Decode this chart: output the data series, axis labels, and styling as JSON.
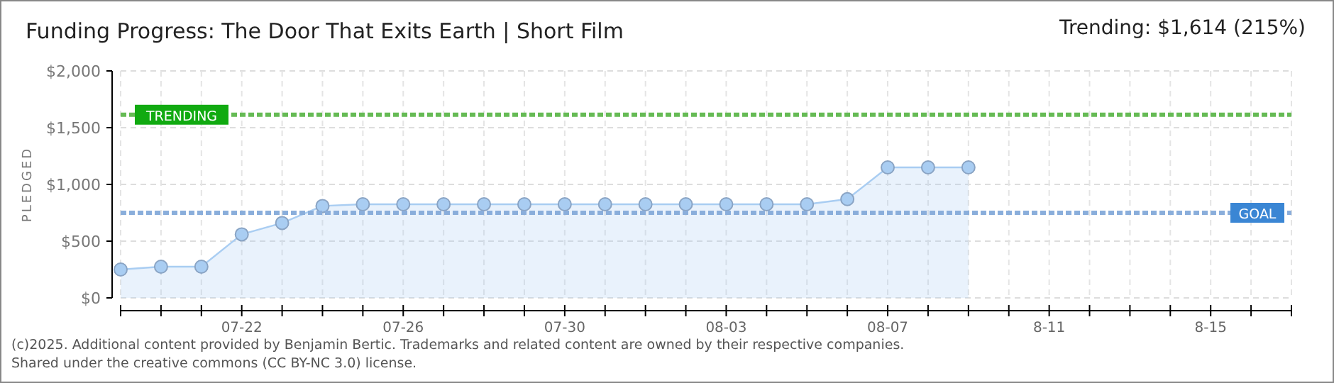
{
  "chart_data": {
    "type": "area",
    "title": "Funding Progress: The Door That Exits Earth | Short Film",
    "subtitle": "Trending: $1,614 (215%)",
    "ylabel": "PLEDGED",
    "categories": [
      null,
      null,
      null,
      "07-22",
      null,
      null,
      null,
      "07-26",
      null,
      null,
      null,
      "07-30",
      null,
      null,
      null,
      "08-03",
      null,
      null,
      null,
      "08-07",
      null,
      null,
      null,
      "8-11",
      null,
      null,
      null,
      "8-15",
      null,
      null
    ],
    "series": [
      {
        "color": "#a9cdf2",
        "values": [
          250,
          275,
          275,
          560,
          660,
          810,
          825,
          825,
          825,
          825,
          825,
          825,
          825,
          825,
          825,
          825,
          825,
          825,
          870,
          1150,
          1150,
          1150,
          null,
          null,
          null,
          null,
          null,
          null,
          null,
          null
        ]
      }
    ],
    "ylim": [
      0,
      2000
    ],
    "yticks": [
      {
        "value": 0,
        "label": "$0"
      },
      {
        "value": 500,
        "label": "$500"
      },
      {
        "value": 1000,
        "label": "$1,000"
      },
      {
        "value": 1500,
        "label": "$1,500"
      },
      {
        "value": 2000,
        "label": "$2,000"
      }
    ],
    "grid": true,
    "marker": "circle",
    "ref_lines": [
      {
        "axis": "y",
        "value": 1614,
        "label": "TRENDING",
        "color": "#66bb55",
        "line_style": "dashed"
      },
      {
        "axis": "y",
        "value": 750,
        "label": "GOAL",
        "color": "#8aaedb",
        "line_style": "dashed"
      }
    ],
    "annotations": [
      "(c)2025. Additional content provided by Benjamin Bertic. Trademarks and related content are owned by their respective companies.",
      "Shared under the creative commons (CC BY-NC 3.0) license."
    ]
  }
}
